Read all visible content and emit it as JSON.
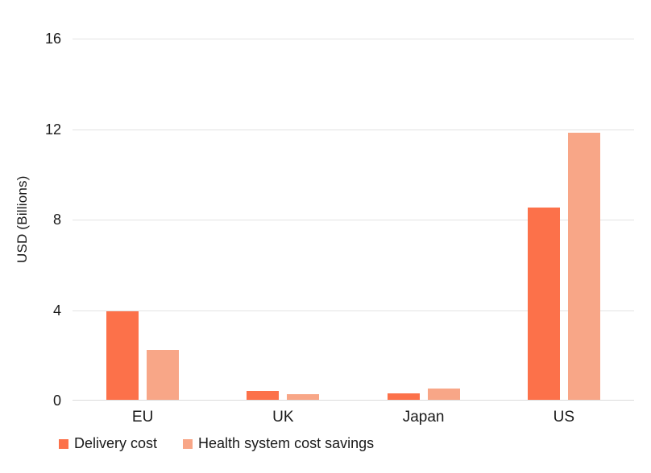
{
  "chart_data": {
    "type": "bar",
    "title": "",
    "categories": [
      "EU",
      "UK",
      "Japan",
      "US"
    ],
    "series": [
      {
        "name": "Delivery cost",
        "color": "#FC714A",
        "values": [
          3.9,
          0.4,
          0.3,
          8.5
        ]
      },
      {
        "name": "Health system cost savings",
        "color": "#F8A687",
        "values": [
          2.2,
          0.25,
          0.5,
          11.8
        ]
      }
    ],
    "xlabel": "",
    "ylabel": "USD (Billions)",
    "yticks": [
      0,
      4,
      8,
      12,
      16
    ],
    "ylim": [
      0,
      16
    ],
    "grid": true,
    "gridline_color": "#e3e3e3",
    "legend_position": "bottom-left"
  }
}
